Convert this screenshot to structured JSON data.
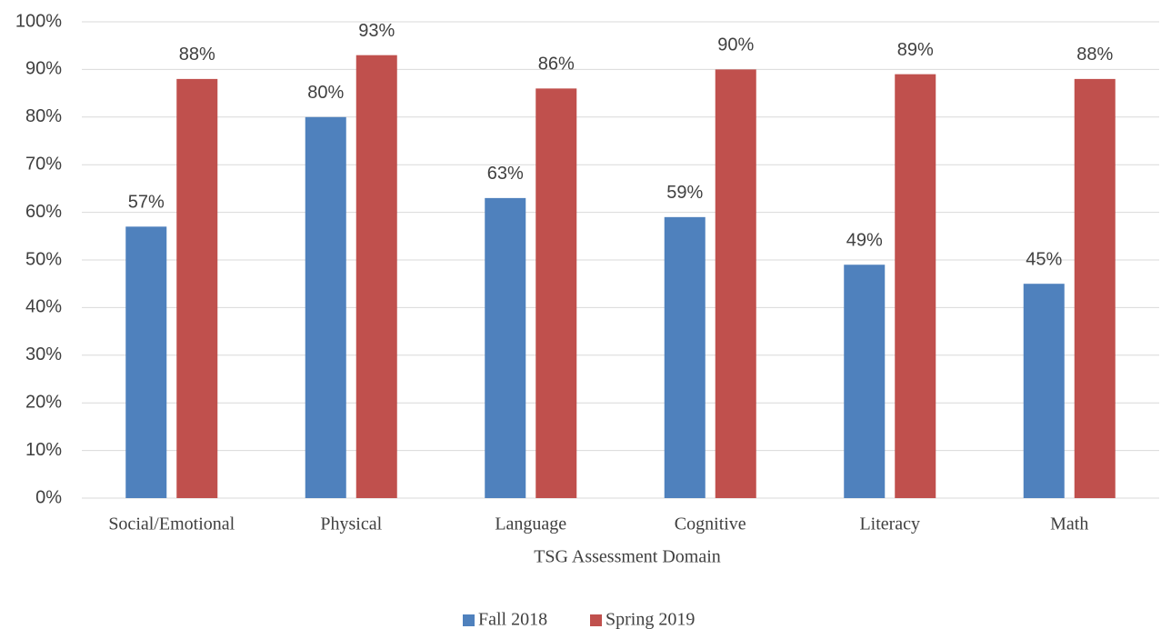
{
  "chart_data": {
    "type": "bar",
    "x_label": "TSG Assessment Domain",
    "categories": [
      "Social/Emotional",
      "Physical",
      "Language",
      "Cognitive",
      "Literacy",
      "Math"
    ],
    "series": [
      {
        "name": "Fall 2018",
        "color": "#4f81bd",
        "values": [
          57,
          80,
          63,
          59,
          49,
          45
        ],
        "value_labels": [
          "57%",
          "80%",
          "63%",
          "59%",
          "49%",
          "45%"
        ]
      },
      {
        "name": "Spring 2019",
        "color": "#c0504d",
        "values": [
          88,
          93,
          86,
          90,
          89,
          88
        ],
        "value_labels": [
          "88%",
          "93%",
          "86%",
          "90%",
          "89%",
          "88%"
        ]
      }
    ],
    "ylim": [
      0,
      100
    ],
    "yticks": [
      {
        "value": 0,
        "label": "0%"
      },
      {
        "value": 10,
        "label": "10%"
      },
      {
        "value": 20,
        "label": "20%"
      },
      {
        "value": 30,
        "label": "30%"
      },
      {
        "value": 40,
        "label": "40%"
      },
      {
        "value": 50,
        "label": "50%"
      },
      {
        "value": 60,
        "label": "60%"
      },
      {
        "value": 70,
        "label": "70%"
      },
      {
        "value": 80,
        "label": "80%"
      },
      {
        "value": 90,
        "label": "90%"
      },
      {
        "value": 100,
        "label": "100%"
      }
    ],
    "grid": true,
    "legend": "bottom"
  }
}
